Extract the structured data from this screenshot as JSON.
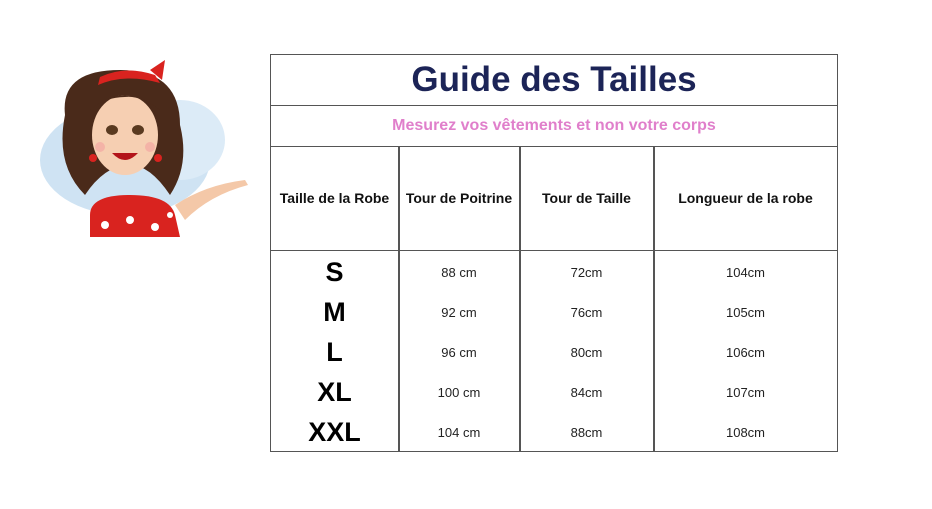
{
  "title": "Guide des Tailles",
  "subtitle": "Mesurez vos vêtements et non votre corps",
  "colors": {
    "title": "#1c2457",
    "subtitle": "#e07fcb",
    "border": "#555555"
  },
  "headers": [
    "Taille de la Robe",
    "Tour de Poitrine",
    "Tour de Taille",
    "Longueur de la robe"
  ],
  "rows": [
    {
      "size": "S",
      "bust": "88 cm",
      "waist": "72cm",
      "length": "104cm"
    },
    {
      "size": "M",
      "bust": "92 cm",
      "waist": "76cm",
      "length": "105cm"
    },
    {
      "size": "L",
      "bust": "96 cm",
      "waist": "80cm",
      "length": "106cm"
    },
    {
      "size": "XL",
      "bust": "100 cm",
      "waist": "84cm",
      "length": "107cm"
    },
    {
      "size": "XXL",
      "bust": "104 cm",
      "waist": "88cm",
      "length": "108cm"
    }
  ]
}
